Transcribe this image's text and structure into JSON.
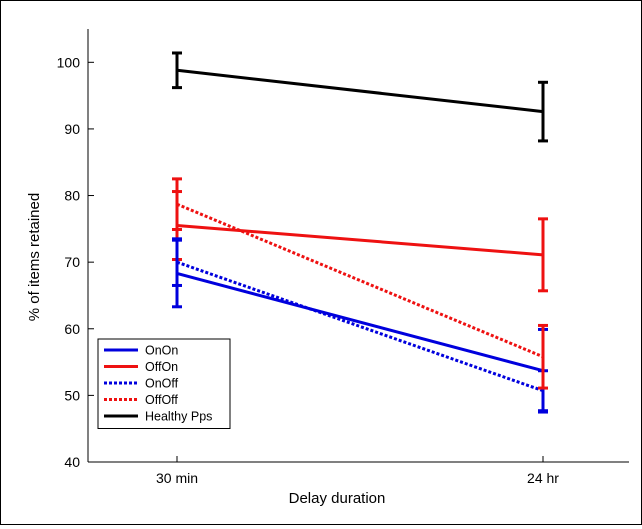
{
  "chart_data": {
    "type": "line",
    "title": "",
    "xlabel": "Delay duration",
    "ylabel": "% of items retained",
    "categories": [
      "30 min",
      "24 hr"
    ],
    "ylim": [
      40,
      105
    ],
    "yticks": [
      40,
      50,
      60,
      70,
      80,
      90,
      100
    ],
    "yticks_text": [
      "40",
      "50",
      "60",
      "70",
      "80",
      "90",
      "100"
    ],
    "grid": false,
    "legend_position": "bottom-left",
    "series": [
      {
        "name": "OnOn",
        "color": "#0000dd",
        "dash": "solid",
        "values": [
          68.3,
          53.7
        ],
        "err": [
          5.0,
          6.2
        ]
      },
      {
        "name": "OffOn",
        "color": "#ee1111",
        "dash": "solid",
        "values": [
          75.5,
          71.1
        ],
        "err": [
          5.1,
          5.4
        ]
      },
      {
        "name": "OnOff",
        "color": "#0000dd",
        "dash": "dotted",
        "values": [
          70.0,
          50.7
        ],
        "err": [
          3.5,
          3.0
        ]
      },
      {
        "name": "OffOff",
        "color": "#ee1111",
        "dash": "dotted",
        "values": [
          78.7,
          55.8
        ],
        "err": [
          3.8,
          4.7
        ]
      },
      {
        "name": "Healthy Pps",
        "color": "#000000",
        "dash": "solid",
        "values": [
          98.8,
          92.6
        ],
        "err": [
          2.6,
          4.4
        ]
      }
    ]
  }
}
